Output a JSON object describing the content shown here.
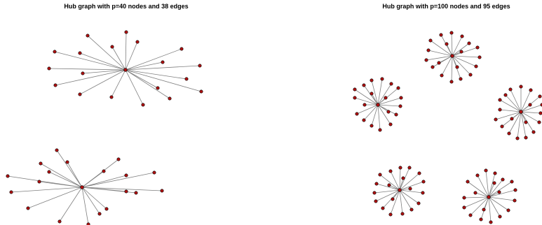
{
  "panels": [
    {
      "title": "Hub graph with p=40 nodes and 38 edges",
      "node_fill": "#b01010",
      "edge_color": "#7f7f7f"
    },
    {
      "title": "Hub graph with p=100 nodes and 95 edges",
      "node_fill": "#b01010",
      "edge_color": "#7f7f7f"
    }
  ]
}
